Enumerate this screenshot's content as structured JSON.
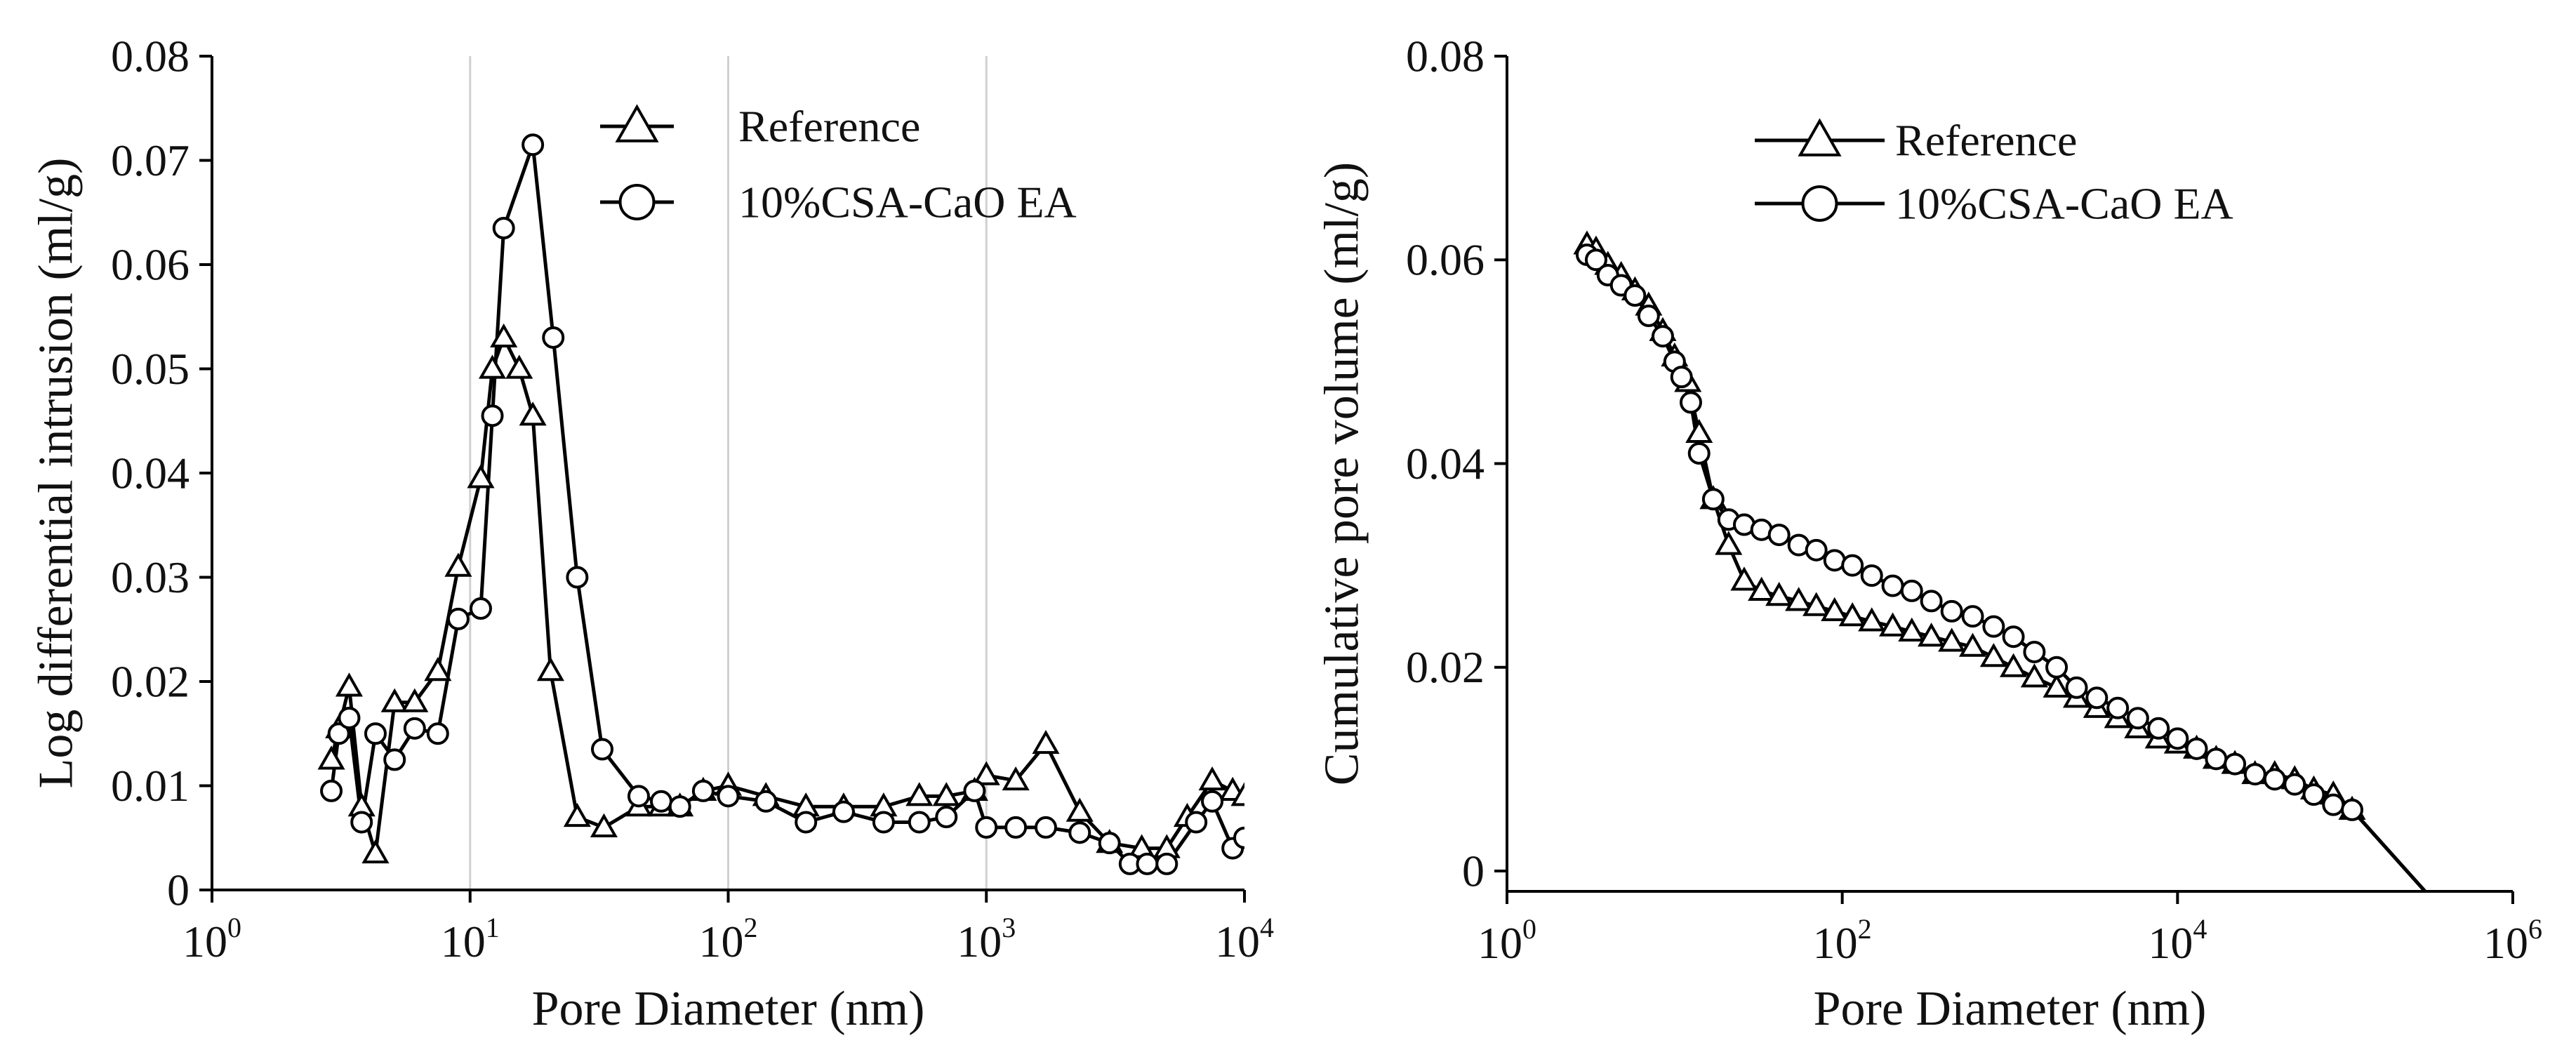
{
  "colors": {
    "line": "#000000",
    "grid": "#d0d0d0",
    "background": "#ffffff"
  },
  "chart_data": [
    {
      "type": "line",
      "xscale": "log",
      "title": "",
      "xlabel": "Pore Diameter (nm)",
      "ylabel": "Log differential intrusion (ml/g)",
      "xlim": [
        1,
        10000
      ],
      "ylim": [
        0,
        0.08
      ],
      "grid": "vertical",
      "x_ticks": [
        {
          "base": "10",
          "exp": "0"
        },
        {
          "base": "10",
          "exp": "1"
        },
        {
          "base": "10",
          "exp": "2"
        },
        {
          "base": "10",
          "exp": "3"
        },
        {
          "base": "10",
          "exp": "4"
        }
      ],
      "y_ticks": [
        {
          "value": 0,
          "label": "0"
        },
        {
          "value": 0.01,
          "label": "0.01"
        },
        {
          "value": 0.02,
          "label": "0.02"
        },
        {
          "value": 0.03,
          "label": "0.03"
        },
        {
          "value": 0.04,
          "label": "0.04"
        },
        {
          "value": 0.05,
          "label": "0.05"
        },
        {
          "value": 0.06,
          "label": "0.06"
        },
        {
          "value": 0.07,
          "label": "0.07"
        },
        {
          "value": 0.08,
          "label": "0.08"
        }
      ],
      "legend_position": "top-center",
      "series": [
        {
          "name": "Reference",
          "marker": "triangle",
          "x": [
            2.9,
            3.1,
            3.4,
            3.8,
            4.3,
            5.1,
            6.1,
            7.5,
            9.0,
            11.0,
            12.2,
            13.5,
            15.5,
            17.5,
            20.5,
            26.0,
            33.0,
            45.0,
            55.0,
            65.0,
            80.0,
            100.0,
            140.0,
            200.0,
            280.0,
            400.0,
            550.0,
            700.0,
            900.0,
            1000.0,
            1300.0,
            1700.0,
            2300.0,
            3000.0,
            4000.0,
            5000.0,
            6000.0,
            7500.0,
            9000.0,
            10000.0
          ],
          "values": [
            0.0125,
            0.0155,
            0.0195,
            0.008,
            0.0035,
            0.018,
            0.018,
            0.021,
            0.031,
            0.0395,
            0.05,
            0.053,
            0.05,
            0.0455,
            0.021,
            0.007,
            0.006,
            0.008,
            0.008,
            0.008,
            0.0095,
            0.01,
            0.009,
            0.008,
            0.008,
            0.008,
            0.009,
            0.009,
            0.0095,
            0.011,
            0.0105,
            0.014,
            0.0075,
            0.0045,
            0.004,
            0.004,
            0.007,
            0.0105,
            0.0095,
            0.009
          ]
        },
        {
          "name": "10%CSA-CaO EA",
          "marker": "circle",
          "x": [
            2.9,
            3.1,
            3.4,
            3.8,
            4.3,
            5.1,
            6.1,
            7.5,
            9.0,
            11.0,
            12.2,
            13.5,
            17.5,
            21.0,
            26.0,
            32.5,
            45.0,
            55.0,
            65.0,
            80.0,
            100.0,
            140.0,
            200.0,
            280.0,
            400.0,
            550.0,
            700.0,
            900.0,
            1000.0,
            1300.0,
            1700.0,
            2300.0,
            3000.0,
            3600.0,
            4200.0,
            5000.0,
            6500.0,
            7500.0,
            9000.0,
            10000.0
          ],
          "values": [
            0.0095,
            0.015,
            0.0165,
            0.0065,
            0.015,
            0.0125,
            0.0155,
            0.015,
            0.026,
            0.027,
            0.0455,
            0.0635,
            0.0715,
            0.053,
            0.03,
            0.0135,
            0.009,
            0.0085,
            0.008,
            0.0095,
            0.009,
            0.0085,
            0.0065,
            0.0075,
            0.0065,
            0.0065,
            0.007,
            0.0095,
            0.006,
            0.006,
            0.006,
            0.0055,
            0.0045,
            0.0025,
            0.0025,
            0.0025,
            0.0065,
            0.0085,
            0.004,
            0.005
          ]
        }
      ]
    },
    {
      "type": "line",
      "xscale": "log",
      "title": "",
      "xlabel": "Pore Diameter (nm)",
      "ylabel": "Cumulative pore volume (ml/g)",
      "xlim": [
        1,
        1000000
      ],
      "ylim": [
        -0.002,
        0.08
      ],
      "grid": "none",
      "x_ticks": [
        {
          "base": "10",
          "exp": "0"
        },
        {
          "base": "10",
          "exp": "2"
        },
        {
          "base": "10",
          "exp": "4"
        },
        {
          "base": "10",
          "exp": "6"
        }
      ],
      "y_ticks": [
        {
          "value": 0,
          "label": "0"
        },
        {
          "value": 0.02,
          "label": "0.02"
        },
        {
          "value": 0.04,
          "label": "0.04"
        },
        {
          "value": 0.06,
          "label": "0.06"
        },
        {
          "value": 0.08,
          "label": "0.08"
        }
      ],
      "legend_position": "top-center",
      "series": [
        {
          "name": "Reference",
          "marker": "triangle",
          "x": [
            3.0,
            3.4,
            4.0,
            4.8,
            5.8,
            7.0,
            8.5,
            10.0,
            12.0,
            14.0,
            17.0,
            21.0,
            26.0,
            33.0,
            42.0,
            55.0,
            70.0,
            90.0,
            115.0,
            150.0,
            200.0,
            260.0,
            340.0,
            450.0,
            600.0,
            800.0,
            1050.0,
            1400.0,
            1900.0,
            2500.0,
            3300.0,
            4400.0,
            5800.0,
            7700.0,
            10000.0,
            13000.0,
            17000.0,
            22000.0,
            29000.0,
            38000.0,
            50000.0,
            65000.0,
            85000.0,
            110000.0,
            300000.0
          ],
          "values": [
            0.0615,
            0.061,
            0.0595,
            0.0585,
            0.057,
            0.0555,
            0.053,
            0.0505,
            0.048,
            0.043,
            0.0365,
            0.032,
            0.0285,
            0.0275,
            0.027,
            0.0265,
            0.026,
            0.0255,
            0.025,
            0.0245,
            0.024,
            0.0235,
            0.023,
            0.0225,
            0.022,
            0.021,
            0.02,
            0.019,
            0.018,
            0.017,
            0.016,
            0.015,
            0.014,
            0.013,
            0.0125,
            0.012,
            0.011,
            0.0105,
            0.0095,
            0.0095,
            0.009,
            0.008,
            0.0075,
            0.006,
            -0.002
          ]
        },
        {
          "name": "10%CSA-CaO EA",
          "marker": "circle",
          "x": [
            3.0,
            3.4,
            4.0,
            4.8,
            5.8,
            7.0,
            8.5,
            10.0,
            11.0,
            12.5,
            14.0,
            17.0,
            21.0,
            26.0,
            33.0,
            42.0,
            55.0,
            70.0,
            90.0,
            115.0,
            150.0,
            200.0,
            260.0,
            340.0,
            450.0,
            600.0,
            800.0,
            1050.0,
            1400.0,
            1900.0,
            2500.0,
            3300.0,
            4400.0,
            5800.0,
            7700.0,
            10000.0,
            13000.0,
            17000.0,
            22000.0,
            29000.0,
            38000.0,
            50000.0,
            65000.0,
            85000.0,
            110000.0,
            300000.0
          ],
          "values": [
            0.0605,
            0.06,
            0.0585,
            0.0575,
            0.0565,
            0.0545,
            0.0525,
            0.05,
            0.0485,
            0.046,
            0.041,
            0.0365,
            0.0345,
            0.034,
            0.0335,
            0.033,
            0.032,
            0.0315,
            0.0305,
            0.03,
            0.029,
            0.028,
            0.0275,
            0.0265,
            0.0255,
            0.025,
            0.024,
            0.023,
            0.0215,
            0.02,
            0.018,
            0.017,
            0.016,
            0.015,
            0.014,
            0.013,
            0.012,
            0.011,
            0.0105,
            0.0095,
            0.009,
            0.0085,
            0.0075,
            0.0065,
            0.006,
            -0.002
          ]
        }
      ]
    }
  ]
}
